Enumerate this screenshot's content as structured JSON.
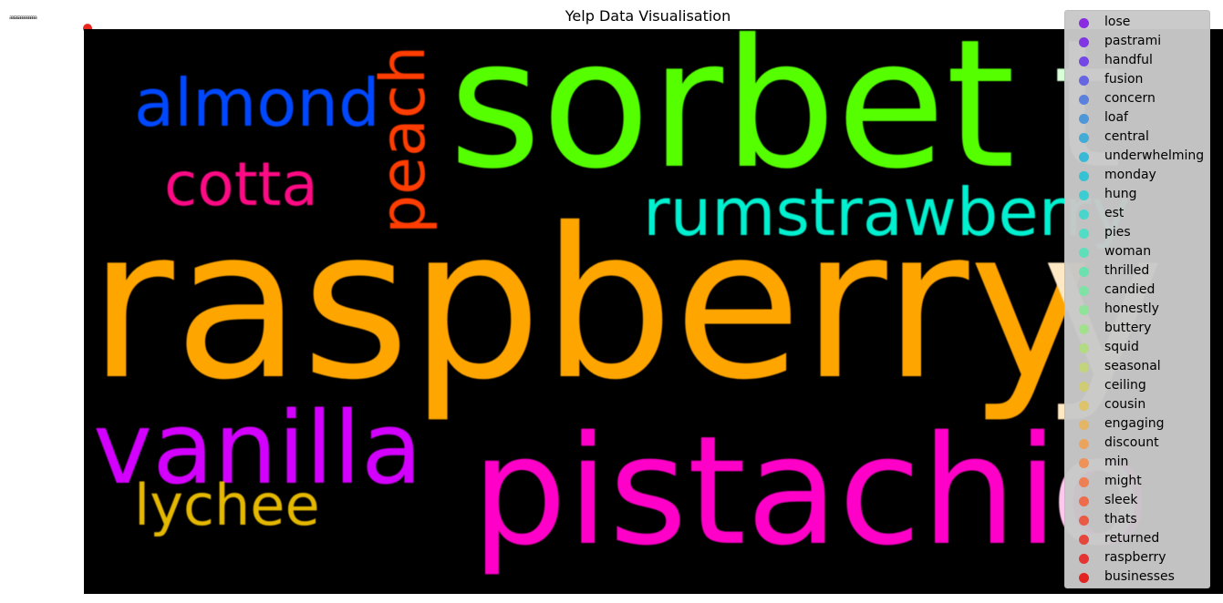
{
  "chart_data": {
    "type": "wordcloud",
    "title": "Yelp Data Visualisation",
    "cloud_words": [
      {
        "text": "raspberry",
        "color": "#ffa500"
      },
      {
        "text": "sorbet",
        "color": "#55ff00"
      },
      {
        "text": "pistachio",
        "color": "#ff00c8"
      },
      {
        "text": "vanilla",
        "color": "#d400ff"
      },
      {
        "text": "almond",
        "color": "#0048ff"
      },
      {
        "text": "cotta",
        "color": "#ff0a85"
      },
      {
        "text": "peach",
        "color": "#ff3d00"
      },
      {
        "text": "rumstrawberry",
        "color": "#00f0d0"
      },
      {
        "text": "lychee",
        "color": "#e5b800"
      },
      {
        "text": "t",
        "color": "#d8ffd8"
      },
      {
        "text": "y",
        "color": "#ffe8c4"
      },
      {
        "text": "o",
        "color": "#ffc8ee"
      }
    ],
    "legend": {
      "placement": "top-right",
      "entries": [
        {
          "label": "lose",
          "color": "#8a2be2"
        },
        {
          "label": "pastrami",
          "color": "#8136e4"
        },
        {
          "label": "handful",
          "color": "#7547e6"
        },
        {
          "label": "fusion",
          "color": "#6666e2"
        },
        {
          "label": "concern",
          "color": "#5b81dc"
        },
        {
          "label": "loaf",
          "color": "#4f97d8"
        },
        {
          "label": "central",
          "color": "#42acd6"
        },
        {
          "label": "underwhelming",
          "color": "#38bad6"
        },
        {
          "label": "monday",
          "color": "#35c3d4"
        },
        {
          "label": "hung",
          "color": "#3ccdd2"
        },
        {
          "label": "est",
          "color": "#48d6cc"
        },
        {
          "label": "pies",
          "color": "#52dcc4"
        },
        {
          "label": "woman",
          "color": "#5edfba"
        },
        {
          "label": "thrilled",
          "color": "#6ce1b0"
        },
        {
          "label": "candied",
          "color": "#7ee3a4"
        },
        {
          "label": "honestly",
          "color": "#90e398"
        },
        {
          "label": "buttery",
          "color": "#a2e08d"
        },
        {
          "label": "squid",
          "color": "#b2db84"
        },
        {
          "label": "seasonal",
          "color": "#c2d47c"
        },
        {
          "label": "ceiling",
          "color": "#d0cc74"
        },
        {
          "label": "cousin",
          "color": "#dcc36c"
        },
        {
          "label": "engaging",
          "color": "#e4b565"
        },
        {
          "label": "discount",
          "color": "#eaa45e"
        },
        {
          "label": "min",
          "color": "#ee9258"
        },
        {
          "label": "might",
          "color": "#ee7f52"
        },
        {
          "label": "sleek",
          "color": "#ec6c4c"
        },
        {
          "label": "thats",
          "color": "#e85a44"
        },
        {
          "label": "returned",
          "color": "#e6473c"
        },
        {
          "label": "raspberry",
          "color": "#e53434"
        },
        {
          "label": "businesses",
          "color": "#e32222"
        }
      ]
    },
    "marker_color": "#e8281e"
  }
}
